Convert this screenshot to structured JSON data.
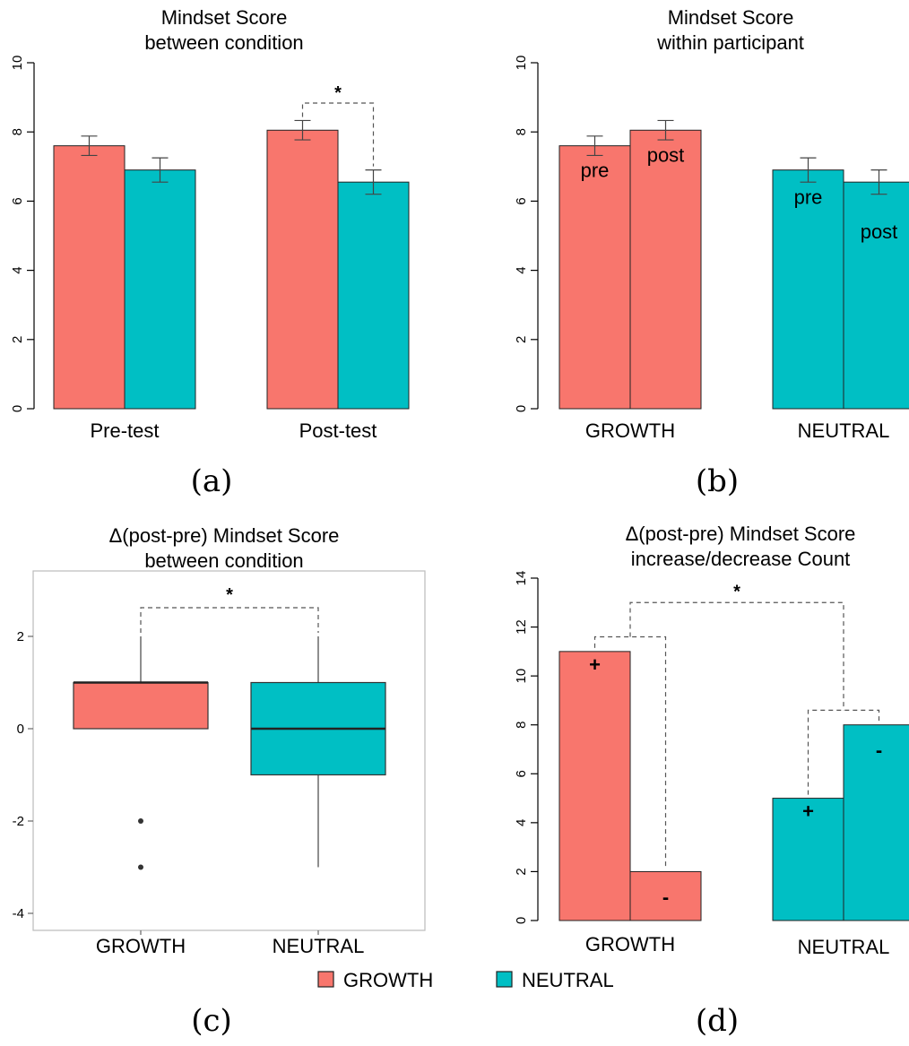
{
  "colors": {
    "growth": "#F8766D",
    "neutral": "#00BFC4"
  },
  "legend": {
    "items": [
      {
        "label": "GROWTH"
      },
      {
        "label": "NEUTRAL"
      }
    ]
  },
  "chart_data": [
    {
      "id": "a",
      "type": "bar",
      "panel_label": "(a)",
      "title": [
        "Mindset Score",
        "between condition"
      ],
      "categories": [
        "Pre-test",
        "Post-test"
      ],
      "series": [
        {
          "name": "GROWTH",
          "values": [
            7.6,
            8.05
          ],
          "error": [
            0.28,
            0.28
          ]
        },
        {
          "name": "NEUTRAL",
          "values": [
            6.9,
            6.55
          ],
          "error": [
            0.35,
            0.35
          ]
        }
      ],
      "ylim": [
        0,
        10
      ],
      "yticks": [
        "0",
        "2",
        "4",
        "6",
        "8",
        "10"
      ],
      "significance": {
        "label": "*",
        "category": "Post-test"
      }
    },
    {
      "id": "b",
      "type": "bar",
      "panel_label": "(b)",
      "title": [
        "Mindset Score",
        "within participant"
      ],
      "categories": [
        "GROWTH",
        "NEUTRAL"
      ],
      "bar_labels": [
        "pre",
        "post"
      ],
      "series": [
        {
          "name": "pre",
          "values": [
            7.6,
            6.9
          ],
          "error": [
            0.28,
            0.35
          ]
        },
        {
          "name": "post",
          "values": [
            8.05,
            6.55
          ],
          "error": [
            0.28,
            0.35
          ]
        }
      ],
      "ylim": [
        0,
        10
      ],
      "yticks": [
        "0",
        "2",
        "4",
        "6",
        "8",
        "10"
      ]
    },
    {
      "id": "c",
      "type": "box",
      "panel_label": "(c)",
      "title": [
        "Δ(post-pre) Mindset Score",
        "between condition"
      ],
      "categories": [
        "GROWTH",
        "NEUTRAL"
      ],
      "boxes": [
        {
          "name": "GROWTH",
          "q1": 0,
          "median": 1,
          "q3": 1,
          "whisker_low": 0,
          "whisker_high": 2,
          "outliers": [
            -2,
            -3
          ]
        },
        {
          "name": "NEUTRAL",
          "q1": -1,
          "median": 0,
          "q3": 1,
          "whisker_low": -3,
          "whisker_high": 2,
          "outliers": []
        }
      ],
      "ylim": [
        -4.2,
        3.3
      ],
      "yticks": [
        "-4",
        "-2",
        "0",
        "2"
      ],
      "significance": {
        "label": "*"
      }
    },
    {
      "id": "d",
      "type": "bar",
      "panel_label": "(d)",
      "title": [
        "Δ(post-pre) Mindset Score",
        "increase/decrease Count"
      ],
      "categories": [
        "GROWTH",
        "NEUTRAL"
      ],
      "bar_labels": [
        "+",
        "-"
      ],
      "series": [
        {
          "name": "+",
          "values": [
            11,
            5
          ]
        },
        {
          "name": "-",
          "values": [
            2,
            8
          ]
        }
      ],
      "ylim": [
        0,
        14
      ],
      "yticks": [
        "0",
        "2",
        "4",
        "6",
        "8",
        "10",
        "12",
        "14"
      ],
      "significance": {
        "label": "*"
      }
    }
  ]
}
